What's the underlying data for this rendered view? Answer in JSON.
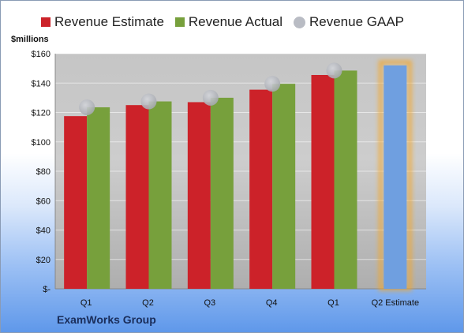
{
  "chart_data": {
    "type": "bar",
    "legend_position": "top",
    "grid": true,
    "ylabel": "$millions",
    "ylim": [
      0,
      160
    ],
    "yticks": [
      {
        "value": 0,
        "label": "$-"
      },
      {
        "value": 20,
        "label": "$20"
      },
      {
        "value": 40,
        "label": "$40"
      },
      {
        "value": 60,
        "label": "$60"
      },
      {
        "value": 80,
        "label": "$80"
      },
      {
        "value": 100,
        "label": "$100"
      },
      {
        "value": 120,
        "label": "$120"
      },
      {
        "value": 140,
        "label": "$140"
      },
      {
        "value": 160,
        "label": "$160"
      }
    ],
    "categories": [
      "Q1",
      "Q2",
      "Q3",
      "Q4",
      "Q1",
      "Q2 Estimate"
    ],
    "series": [
      {
        "name": "Revenue Estimate",
        "kind": "bar",
        "color": "#cc2229",
        "values": [
          117.5,
          125,
          127,
          135.5,
          145.5,
          null
        ]
      },
      {
        "name": "Revenue Actual",
        "kind": "bar",
        "color": "#77a03c",
        "values": [
          123.5,
          127.5,
          130,
          139.5,
          148.5,
          null
        ]
      },
      {
        "name": "Revenue GAAP",
        "kind": "marker",
        "color": "#b9bcc4",
        "values": [
          123.5,
          127.5,
          130,
          139.5,
          148.5,
          null
        ]
      },
      {
        "name": "Q2 Estimate",
        "kind": "bar",
        "color": "#6f9fe0",
        "highlight": "#f5a623",
        "values": [
          null,
          null,
          null,
          null,
          null,
          152
        ]
      }
    ]
  },
  "legend": [
    {
      "label": "Revenue Estimate",
      "color": "#cc2229",
      "shape": "square"
    },
    {
      "label": "Revenue Actual",
      "color": "#77a03c",
      "shape": "square"
    },
    {
      "label": "Revenue GAAP",
      "color": "#b9bcc4",
      "shape": "circle"
    }
  ],
  "footer": {
    "company": "ExamWorks Group"
  }
}
